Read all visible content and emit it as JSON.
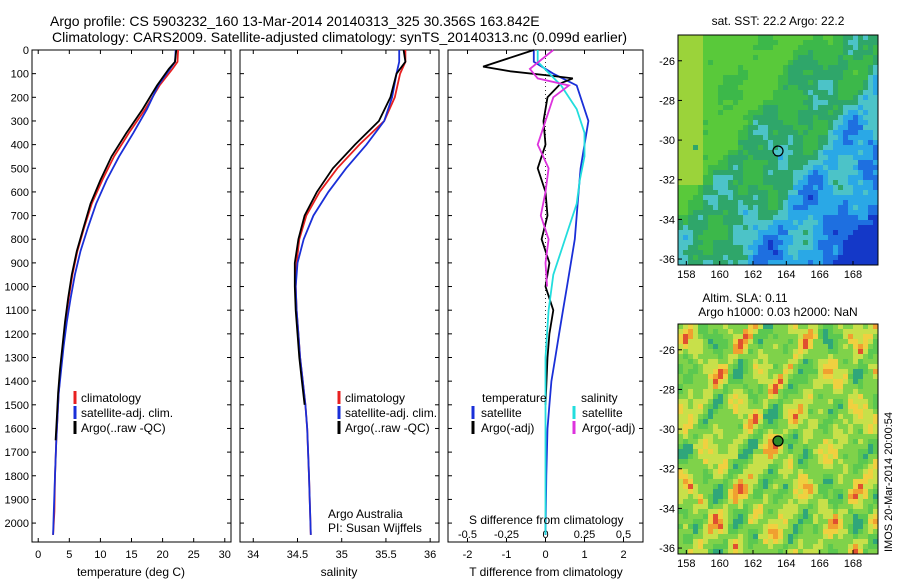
{
  "header": {
    "line1": "Argo profile: CS 5903232_160 13-Mar-2014 20140313_325 30.356S 163.842E",
    "line2": "Climatology: CARS2009. Satellite-adjusted climatology: synTS_20140313.nc (0.099d earlier)"
  },
  "colors": {
    "climatology": "#e82020",
    "satellite": "#1a2fd8",
    "argo": "#000000",
    "salinity_sat": "#22dddd",
    "salinity_argo": "#dd33dd"
  },
  "panels": {
    "temperature": {
      "xlabel": "temperature (deg C)",
      "xticks": [
        "0",
        "5",
        "10",
        "15",
        "20",
        "25",
        "30"
      ],
      "legend": [
        "climatology",
        "satellite-adj. clim.",
        "Argo(..raw -QC)"
      ]
    },
    "salinity": {
      "xlabel": "salinity",
      "xticks": [
        "34",
        "34.5",
        "35",
        "35.5",
        "36"
      ],
      "legend": [
        "climatology",
        "satellite-adj. clim.",
        "Argo(..raw -QC)"
      ],
      "note1": "Argo Australia",
      "note2": "PI: Susan Wijffels"
    },
    "difference": {
      "xlabel": "T difference from climatology",
      "xlabel_top": "S difference from climatology",
      "xticks_T": [
        "-2",
        "-1",
        "0",
        "1",
        "2"
      ],
      "xticks_S": [
        "-0.5",
        "-0.25",
        "0",
        "0.25",
        "0.5"
      ],
      "legend_left_title": "temperature",
      "legend_right_title": "salinity",
      "legend_left": [
        "satellite",
        "Argo(-adj)"
      ],
      "legend_right": [
        "satellite",
        "Argo(-adj)"
      ]
    },
    "yticks": [
      "0",
      "100",
      "200",
      "300",
      "400",
      "500",
      "600",
      "700",
      "800",
      "900",
      "1000",
      "1100",
      "1200",
      "1300",
      "1400",
      "1500",
      "1600",
      "1700",
      "1800",
      "1900",
      "2000"
    ]
  },
  "maps": {
    "sst_title": "sat. SST: 22.2  Argo: 22.2",
    "sla_title1": "Altim. SLA: 0.11",
    "sla_title2": "Argo h1000: 0.03 h2000: NaN",
    "lat_ticks": [
      "-26",
      "-28",
      "-30",
      "-32",
      "-34",
      "-36"
    ],
    "lon_ticks": [
      "158",
      "160",
      "162",
      "164",
      "166",
      "168"
    ],
    "stamp": "IMOS 20-Mar-2014 20:00:54"
  },
  "chart_data": [
    {
      "type": "line",
      "title": "",
      "xlabel": "temperature (deg C)",
      "ylabel": "",
      "xlim": [
        -1,
        31
      ],
      "ylim": [
        2080,
        0
      ],
      "series": [
        {
          "name": "climatology",
          "x": [
            22.5,
            22.4,
            21.6,
            19.5,
            17.2,
            14.6,
            12.2,
            10.3,
            8.6,
            7.4,
            6.3,
            5.5,
            4.9,
            4.4,
            4.0,
            3.6,
            3.3,
            3.1,
            2.9,
            2.7,
            2.6,
            2.4
          ],
          "y": [
            0,
            50,
            80,
            150,
            250,
            350,
            450,
            550,
            650,
            750,
            850,
            950,
            1050,
            1150,
            1250,
            1350,
            1450,
            1550,
            1650,
            1800,
            1950,
            2050
          ]
        },
        {
          "name": "satellite-adj. clim.",
          "x": [
            22.1,
            22.0,
            21.2,
            19.3,
            17.5,
            15.3,
            13.0,
            11.0,
            9.3,
            8.0,
            6.8,
            5.9,
            5.2,
            4.6,
            4.1,
            3.7,
            3.3,
            3.1,
            2.9,
            2.7,
            2.5,
            2.4
          ],
          "y": [
            0,
            50,
            80,
            150,
            250,
            350,
            450,
            550,
            650,
            750,
            850,
            950,
            1050,
            1150,
            1250,
            1350,
            1450,
            1550,
            1650,
            1800,
            1950,
            2050
          ]
        },
        {
          "name": "Argo(..raw -QC)",
          "x": [
            22.2,
            22.0,
            21.0,
            19.1,
            16.8,
            14.2,
            11.8,
            10.0,
            8.4,
            7.3,
            6.2,
            5.4,
            4.8,
            4.3,
            3.9,
            3.5,
            3.2,
            3.0,
            2.8
          ],
          "y": [
            0,
            50,
            80,
            150,
            250,
            350,
            450,
            550,
            650,
            750,
            850,
            950,
            1050,
            1150,
            1250,
            1350,
            1450,
            1550,
            1650
          ]
        }
      ]
    },
    {
      "type": "line",
      "title": "",
      "xlabel": "salinity",
      "ylabel": "",
      "xlim": [
        33.85,
        36.1
      ],
      "ylim": [
        2080,
        0
      ],
      "series": [
        {
          "name": "climatology",
          "x": [
            35.72,
            35.72,
            35.66,
            35.6,
            35.48,
            35.2,
            34.95,
            34.75,
            34.6,
            34.52,
            34.49,
            34.48,
            34.49,
            34.51,
            34.53,
            34.56,
            34.59,
            34.61,
            34.63,
            34.65
          ],
          "y": [
            0,
            50,
            100,
            200,
            300,
            400,
            500,
            600,
            700,
            800,
            900,
            1000,
            1100,
            1200,
            1300,
            1400,
            1500,
            1600,
            1800,
            2050
          ]
        },
        {
          "name": "satellite-adj. clim.",
          "x": [
            35.65,
            35.65,
            35.62,
            35.57,
            35.48,
            35.28,
            35.05,
            34.85,
            34.68,
            34.57,
            34.5,
            34.48,
            34.49,
            34.51,
            34.53,
            34.56,
            34.59,
            34.61,
            34.63,
            34.65
          ],
          "y": [
            0,
            50,
            100,
            200,
            300,
            400,
            500,
            600,
            700,
            800,
            900,
            1000,
            1100,
            1200,
            1300,
            1400,
            1500,
            1600,
            1800,
            2050
          ]
        },
        {
          "name": "Argo(..raw -QC)",
          "x": [
            35.7,
            35.72,
            35.62,
            35.55,
            35.42,
            35.15,
            34.9,
            34.72,
            34.58,
            34.51,
            34.47,
            34.47,
            34.48,
            34.5,
            34.52,
            34.55,
            34.58
          ],
          "y": [
            0,
            50,
            100,
            200,
            300,
            400,
            500,
            600,
            700,
            800,
            900,
            1000,
            1100,
            1200,
            1300,
            1400,
            1500
          ]
        }
      ]
    },
    {
      "type": "line",
      "title": "",
      "xlabel": "T difference from climatology",
      "ylabel": "",
      "xlim": [
        -2.5,
        2.5
      ],
      "ylim": [
        2080,
        0
      ],
      "series": [
        {
          "name": "temperature satellite",
          "x": [
            -0.3,
            -0.3,
            0.2,
            0.8,
            1.1,
            1.0,
            0.9,
            0.85,
            0.8,
            0.75,
            0.65,
            0.55,
            0.45,
            0.35,
            0.25,
            0.15,
            0.1,
            0.05,
            0.02,
            0.0
          ],
          "y": [
            0,
            50,
            100,
            150,
            300,
            400,
            500,
            600,
            700,
            800,
            900,
            1000,
            1100,
            1200,
            1300,
            1400,
            1500,
            1600,
            1800,
            2050
          ]
        },
        {
          "name": "temperature Argo(-adj)",
          "x": [
            -0.3,
            -1.6,
            -0.9,
            0.2,
            0.7,
            0.4,
            0.05,
            -0.05,
            0.0,
            -0.2,
            0.0,
            0.05,
            -0.1,
            0.1,
            0.0,
            0.2,
            0.1,
            0.05,
            0.0
          ],
          "y": [
            0,
            70,
            90,
            110,
            120,
            140,
            200,
            300,
            400,
            500,
            600,
            700,
            800,
            900,
            1000,
            1100,
            1200,
            1300,
            1500
          ]
        },
        {
          "name": "salinity satellite",
          "x": [
            -0.05,
            -0.05,
            0.1,
            0.2,
            0.25,
            0.25,
            0.22,
            0.2,
            0.15,
            0.1,
            0.05,
            0.02,
            0.0,
            0.0,
            0.0,
            0.0
          ],
          "y": [
            0,
            50,
            150,
            250,
            350,
            450,
            550,
            650,
            750,
            850,
            950,
            1100,
            1300,
            1500,
            1700,
            2050
          ]
        },
        {
          "name": "salinity Argo(-adj)",
          "x": [
            0.05,
            -0.1,
            -0.05,
            0.15,
            0.05,
            0.0,
            -0.05,
            0.02,
            0.0,
            -0.03,
            0.02,
            0.0,
            0.01
          ],
          "y": [
            0,
            80,
            120,
            150,
            200,
            300,
            400,
            500,
            600,
            700,
            800,
            900,
            1000
          ]
        }
      ]
    },
    {
      "type": "heatmap",
      "title": "sat. SST: 22.2  Argo: 22.2",
      "xlabel": "",
      "ylabel": "",
      "xlim": [
        157.5,
        169.5
      ],
      "ylim": [
        -36.3,
        -24.7
      ]
    },
    {
      "type": "heatmap",
      "title": "Altim. SLA: 0.11 / Argo h1000: 0.03 h2000: NaN",
      "xlabel": "",
      "ylabel": "",
      "xlim": [
        157.5,
        169.5
      ],
      "ylim": [
        -36.3,
        -24.7
      ]
    }
  ]
}
